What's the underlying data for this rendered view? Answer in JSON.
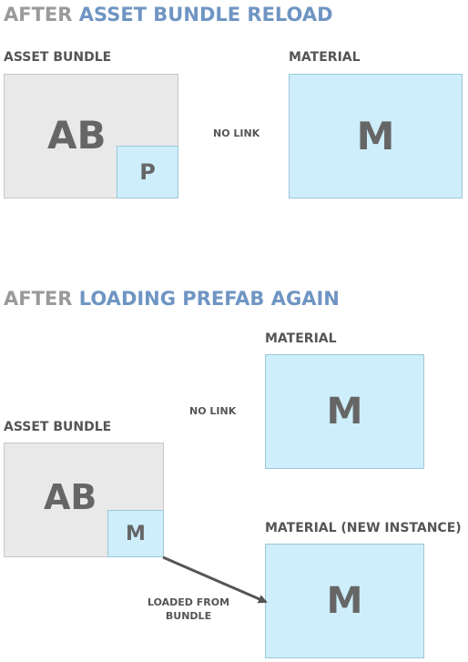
{
  "section1": {
    "heading_prefix": "AFTER",
    "heading_highlight": "ASSET BUNDLE RELOAD",
    "asset_bundle_label": "ASSET BUNDLE",
    "material_label": "MATERIAL",
    "ab_box_text": "AB",
    "prefab_box_text": "P",
    "material_box_text": "M",
    "link_text": "NO LINK"
  },
  "section2": {
    "heading_prefix": "AFTER",
    "heading_highlight": "LOADING PREFAB AGAIN",
    "material_label": "MATERIAL",
    "asset_bundle_label": "ASSET BUNDLE",
    "new_material_label": "MATERIAL (NEW INSTANCE)",
    "ab_box_text": "AB",
    "embedded_material_text": "M",
    "material_box_text": "M",
    "new_material_box_text": "M",
    "link_text": "NO LINK",
    "arrow_label_line1": "LOADED FROM",
    "arrow_label_line2": "BUNDLE"
  },
  "colors": {
    "heading_gray": "#9a9a9a",
    "heading_blue": "#6f95c3",
    "asset_bundle_fill": "#e9e9e9",
    "material_fill": "#cdeefa",
    "text": "#555555"
  }
}
